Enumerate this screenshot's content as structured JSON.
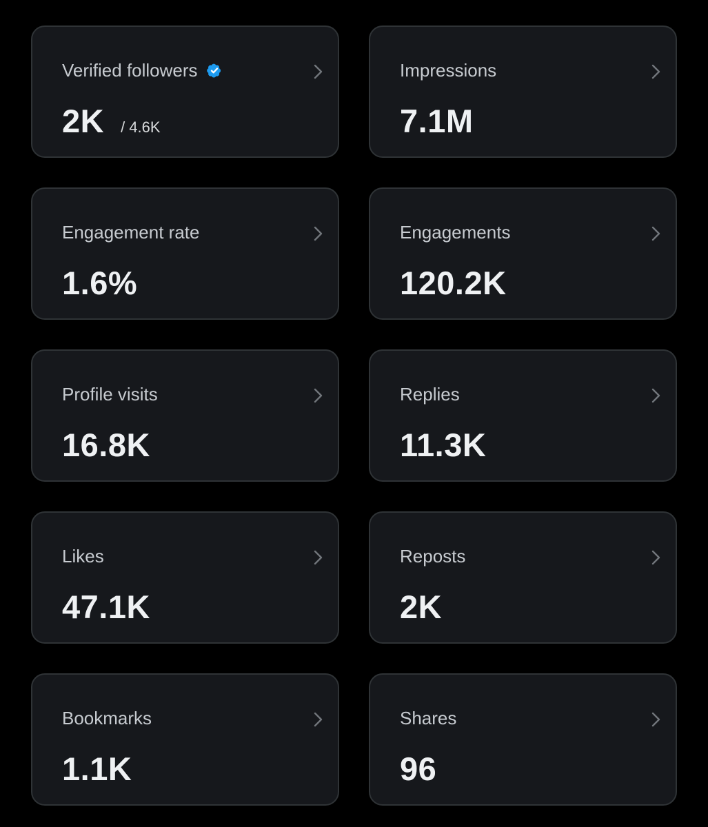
{
  "colors": {
    "background": "#000000",
    "card_background": "#16181c",
    "card_border": "#2f3336",
    "label_text": "#c7cbd0",
    "value_text": "#eff1f3",
    "verified_badge": "#1d9bf0",
    "chevron": "#71767b"
  },
  "metrics": [
    {
      "label": "Verified followers",
      "value": "2K",
      "secondary": "/ 4.6K",
      "icon": "verified-badge-icon"
    },
    {
      "label": "Impressions",
      "value": "7.1M"
    },
    {
      "label": "Engagement rate",
      "value": "1.6%"
    },
    {
      "label": "Engagements",
      "value": "120.2K"
    },
    {
      "label": "Profile visits",
      "value": "16.8K"
    },
    {
      "label": "Replies",
      "value": "11.3K"
    },
    {
      "label": "Likes",
      "value": "47.1K"
    },
    {
      "label": "Reposts",
      "value": "2K"
    },
    {
      "label": "Bookmarks",
      "value": "1.1K"
    },
    {
      "label": "Shares",
      "value": "96"
    }
  ],
  "icons": {
    "card_action": "chevron-right-icon"
  }
}
